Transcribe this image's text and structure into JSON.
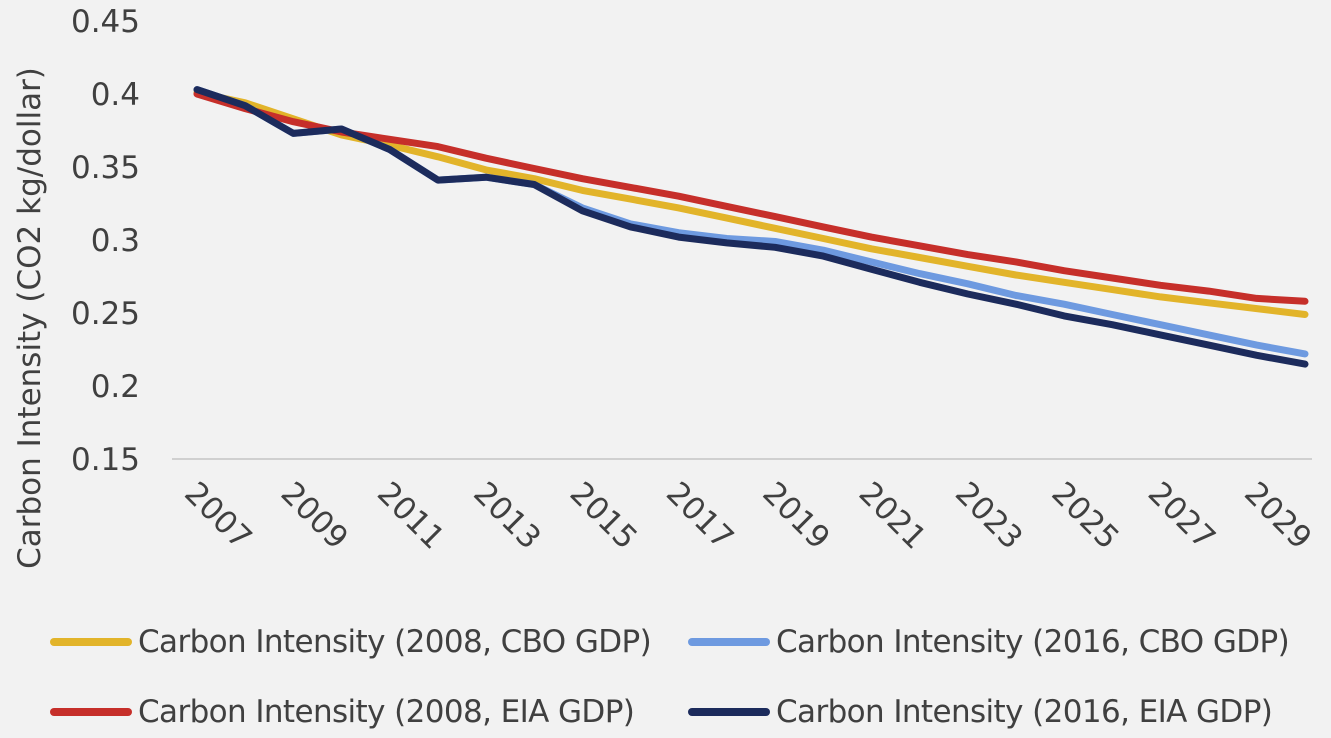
{
  "chart_data": {
    "type": "line",
    "title": "",
    "xlabel": "",
    "ylabel": "Carbon Intensity (CO2 kg/dollar)",
    "ylim": [
      0.15,
      0.45
    ],
    "yticks": [
      "0.15",
      "0.2",
      "0.25",
      "0.3",
      "0.35",
      "0.4",
      "0.45"
    ],
    "xticks": [
      "2007",
      "2009",
      "2011",
      "2013",
      "2015",
      "2017",
      "2019",
      "2021",
      "2023",
      "2025",
      "2027",
      "2029"
    ],
    "x": [
      2007,
      2008,
      2009,
      2010,
      2011,
      2012,
      2013,
      2014,
      2015,
      2016,
      2017,
      2018,
      2019,
      2020,
      2021,
      2022,
      2023,
      2024,
      2025,
      2026,
      2027,
      2028,
      2029,
      2030
    ],
    "grid": false,
    "legend_position": "bottom",
    "series": [
      {
        "name": "Carbon Intensity (2008, CBO GDP)",
        "color": "#e2b42a",
        "values": [
          0.401,
          0.394,
          0.383,
          0.372,
          0.365,
          0.357,
          0.348,
          0.342,
          0.334,
          0.328,
          0.322,
          0.315,
          0.308,
          0.301,
          0.294,
          0.288,
          0.282,
          0.276,
          0.271,
          0.266,
          0.261,
          0.257,
          0.253,
          0.249
        ]
      },
      {
        "name": "Carbon Intensity (2016, CBO GDP)",
        "color": "#6e9ae0",
        "values": [
          0.403,
          0.392,
          0.373,
          0.376,
          0.362,
          0.341,
          0.343,
          0.338,
          0.322,
          0.311,
          0.305,
          0.301,
          0.299,
          0.293,
          0.285,
          0.277,
          0.27,
          0.262,
          0.256,
          0.249,
          0.242,
          0.235,
          0.228,
          0.222
        ]
      },
      {
        "name": "Carbon Intensity (2008, EIA GDP)",
        "color": "#c62f2a",
        "values": [
          0.4,
          0.39,
          0.381,
          0.374,
          0.369,
          0.364,
          0.356,
          0.349,
          0.342,
          0.336,
          0.33,
          0.323,
          0.316,
          0.309,
          0.302,
          0.296,
          0.29,
          0.285,
          0.279,
          0.274,
          0.269,
          0.265,
          0.26,
          0.258
        ]
      },
      {
        "name": "Carbon Intensity (2016, EIA GDP)",
        "color": "#1c2b5c",
        "values": [
          0.403,
          0.392,
          0.373,
          0.376,
          0.362,
          0.341,
          0.343,
          0.338,
          0.32,
          0.309,
          0.302,
          0.298,
          0.295,
          0.289,
          0.28,
          0.271,
          0.263,
          0.256,
          0.248,
          0.242,
          0.235,
          0.228,
          0.221,
          0.215
        ]
      }
    ]
  }
}
